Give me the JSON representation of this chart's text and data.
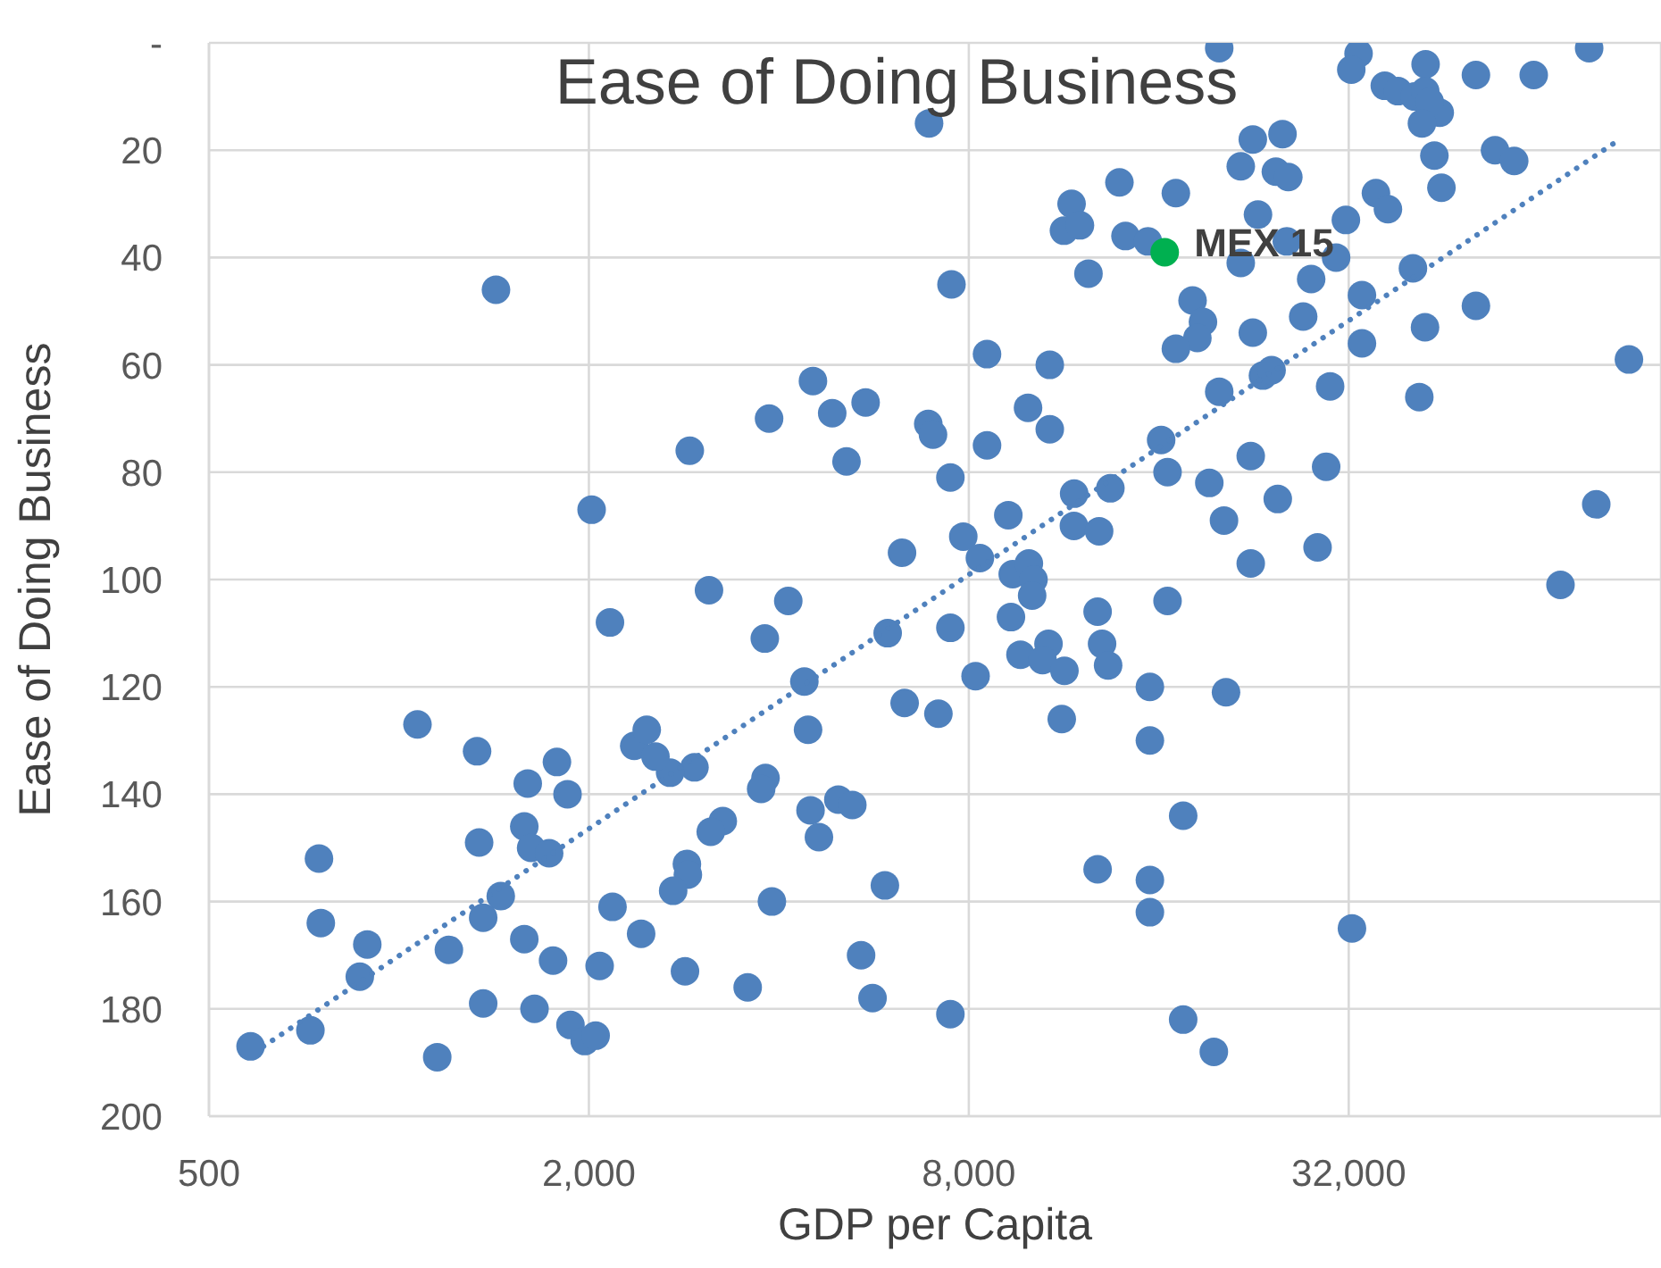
{
  "chart_data": {
    "type": "scatter",
    "title": "Ease of Doing Business",
    "xlabel": "GDP per Capita",
    "ylabel": "Ease of Doing Business",
    "xlim": [
      500,
      100000
    ],
    "xticks": [
      500,
      {
        "value": 2000,
        "label": "2,000"
      },
      {
        "value": 8000,
        "label": "8,000"
      },
      {
        "value": 32000,
        "label": "32,000"
      }
    ],
    "ylim": [
      200,
      0
    ],
    "yticks": [
      {
        "value": 0,
        "label": "-"
      },
      20,
      40,
      60,
      80,
      100,
      120,
      140,
      160,
      180,
      200
    ],
    "log": "x",
    "grid": true,
    "legend": false,
    "marker": "circle",
    "series": [
      {
        "color": "#4f81bd",
        "x": [
          1425,
          2020,
          2890,
          6920,
          7510,
          13860,
          11640,
          11320,
          12000,
          14170,
          15380,
          12380,
          8550,
          10750,
          4530,
          3860,
          4860,
          5490,
          5120,
          6900,
          7020,
          8550,
          9930,
          10750,
          7480,
          11750,
          13410,
          11740,
          12870,
          9240,
          7840,
          6270,
          8330,
          19950,
          33170,
          32300,
          42360,
          50900,
          62850,
          76940,
          36500,
          38300,
          40700,
          42300,
          44600,
          43000,
          22550,
          25130,
          21580,
          24530,
          25670,
          17030,
          22980,
          31670,
          35340,
          36920,
          43740,
          44880,
          54570,
          58530,
          30560,
          25530,
          21580,
          40450,
          18100,
          18800,
          18420,
          17030,
          22550,
          27900,
          27100,
          33580,
          33580,
          42270,
          50900,
          88960,
          23400,
          24150,
          19950,
          29900,
          41400,
          16140,
          16520,
          22380,
          19240,
          29470,
          24700,
          20300,
          28560,
          22380,
          78960,
          69300,
          16520,
          15490,
          20450,
          15490,
          17490,
          15490,
          15490,
          32380,
          17490,
          19560,
          9390,
          9960,
          10130,
          10080,
          3100,
          4140,
          3800,
          5950,
          7480,
          9330,
          12800,
          9660,
          10700,
          10470,
          11340,
          13010,
          13300,
          8200,
          11230,
          6330,
          7160,
          4450,
          4390,
          2940,
          2690,
          3810,
          3750,
          4490,
          4970,
          5230,
          4630,
          3260,
          3120,
          2860,
          2870,
          2720,
          3900,
          5890,
          12800,
          5400,
          2840,
          3570,
          5630,
          7480,
          2160,
          1070,
          1330,
          1600,
          1780,
          1850,
          2360,
          2470,
          2550,
          1580,
          1620,
          1730,
          1340,
          747,
          1450,
          1360,
          752,
          891,
          867,
          1200,
          1580,
          1755,
          2080,
          2180,
          2420,
          1360,
          1640,
          1870,
          1970,
          2050,
          724,
          582,
          1150,
          41800
        ],
        "values": [
          46,
          87,
          76,
          15,
          45,
          26,
          30,
          35,
          34,
          36,
          37,
          43,
          58,
          60,
          63,
          70,
          69,
          67,
          78,
          71,
          73,
          75,
          68,
          72,
          81,
          84,
          83,
          90,
          91,
          88,
          92,
          95,
          96,
          1,
          2,
          5,
          4,
          6,
          6,
          1,
          8,
          9,
          10,
          9,
          13,
          11,
          18,
          17,
          23,
          24,
          25,
          28,
          32,
          33,
          28,
          31,
          21,
          27,
          20,
          22,
          40,
          37,
          41,
          42,
          48,
          52,
          55,
          57,
          54,
          44,
          51,
          47,
          56,
          53,
          49,
          59,
          62,
          61,
          65,
          64,
          66,
          74,
          80,
          77,
          82,
          79,
          85,
          89,
          94,
          97,
          86,
          101,
          104,
          120,
          121,
          130,
          144,
          156,
          162,
          165,
          182,
          188,
          99,
          97,
          100,
          103,
          102,
          104,
          111,
          110,
          109,
          107,
          106,
          114,
          112,
          115,
          117,
          112,
          116,
          118,
          126,
          123,
          125,
          128,
          119,
          135,
          136,
          137,
          139,
          143,
          141,
          142,
          148,
          145,
          147,
          153,
          155,
          158,
          160,
          157,
          154,
          170,
          173,
          176,
          178,
          181,
          108,
          127,
          132,
          138,
          134,
          140,
          131,
          128,
          133,
          146,
          150,
          151,
          149,
          152,
          159,
          163,
          164,
          168,
          174,
          169,
          167,
          171,
          172,
          161,
          166,
          179,
          180,
          183,
          186,
          185,
          184,
          187,
          189,
          15
        ]
      },
      {
        "name": "MEX 15",
        "color": "#00b050",
        "x": [
          16350
        ],
        "values": [
          39
        ]
      },
      {
        "type": "line",
        "color": "#4f81bd",
        "line_style": "dotted",
        "marker": "none",
        "x": [
          610,
          86000
        ],
        "values": [
          187,
          18
        ]
      }
    ]
  }
}
